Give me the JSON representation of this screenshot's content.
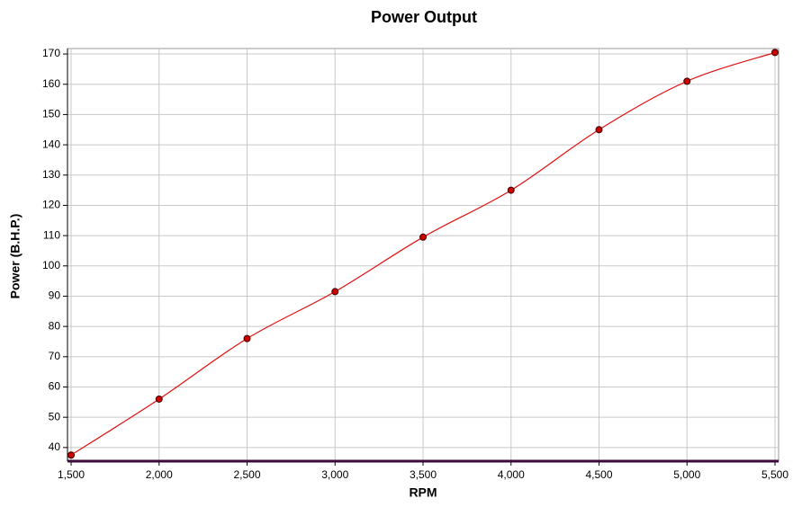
{
  "chart_data": {
    "type": "line",
    "title": "Power Output",
    "x_label": "RPM",
    "y_label": "Power (B.H.P.)",
    "x": [
      1500,
      2000,
      2500,
      3000,
      3500,
      4000,
      4500,
      5000,
      5500
    ],
    "series": [
      {
        "name": "Power",
        "color": "#e01010",
        "values": [
          37.5,
          56,
          76,
          91.5,
          109.5,
          125,
          145,
          161,
          170.5
        ]
      }
    ],
    "xlim": [
      1500,
      5500
    ],
    "xticks": [
      {
        "value": 1500,
        "label": "1,500"
      },
      {
        "value": 2000,
        "label": "2,000"
      },
      {
        "value": 2500,
        "label": "2,500"
      },
      {
        "value": 3000,
        "label": "3,000"
      },
      {
        "value": 3500,
        "label": "3,500"
      },
      {
        "value": 4000,
        "label": "4,000"
      },
      {
        "value": 4500,
        "label": "4,500"
      },
      {
        "value": 5000,
        "label": "5,000"
      },
      {
        "value": 5500,
        "label": "5,500"
      }
    ],
    "ylim": [
      35.5,
      171.8
    ],
    "yticks": [
      40,
      50,
      60,
      70,
      80,
      90,
      100,
      110,
      120,
      130,
      140,
      150,
      160,
      170
    ],
    "grid": true
  }
}
